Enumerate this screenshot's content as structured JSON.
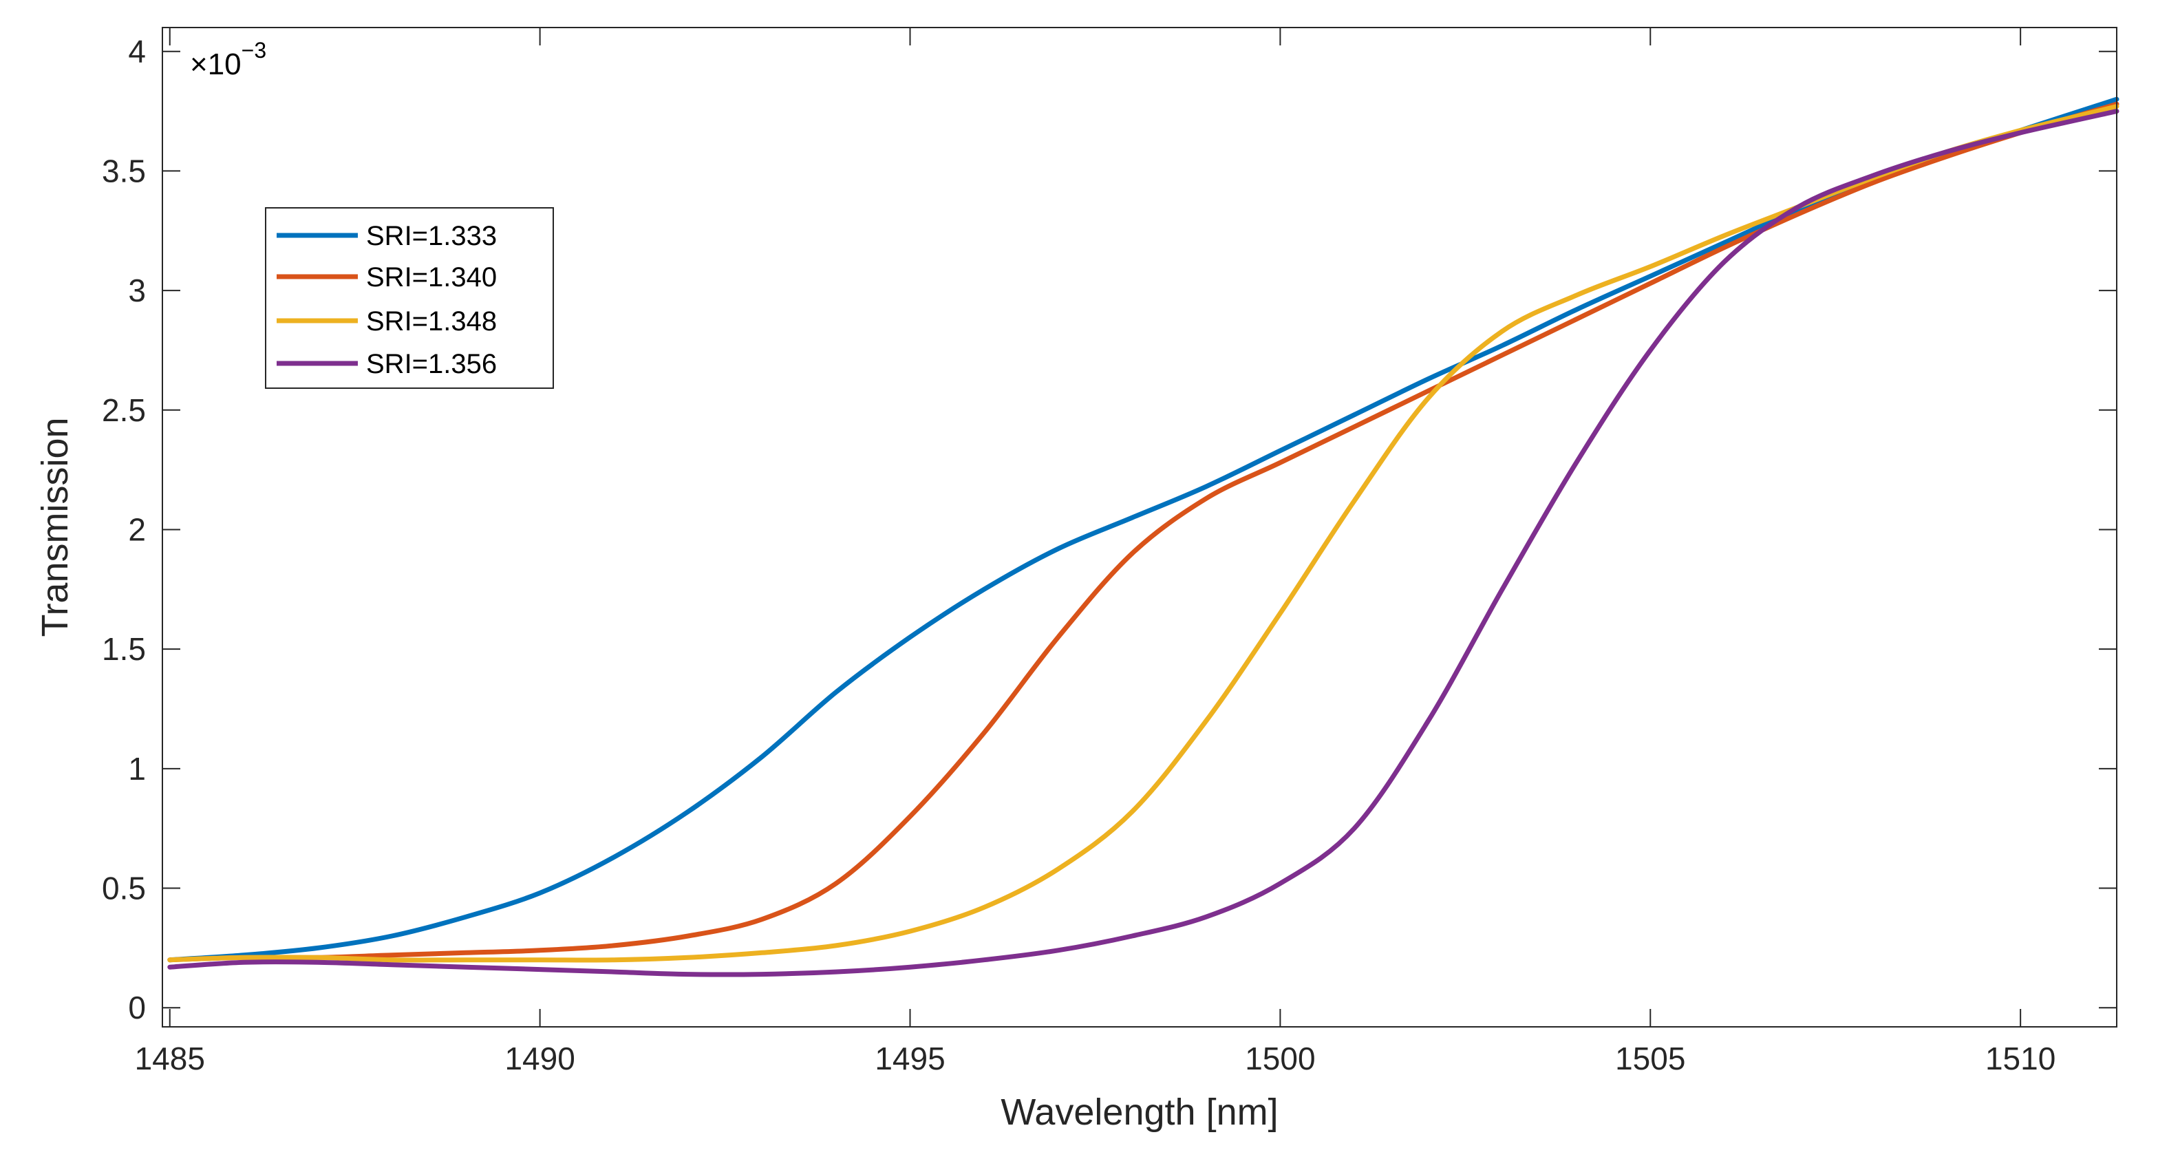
{
  "chart_data": {
    "type": "line",
    "title": "",
    "xlabel": "Wavelength [nm]",
    "ylabel": "Transmission",
    "xlim": [
      1484.9,
      1511.3
    ],
    "ylim": [
      -0.08,
      4.1
    ],
    "xticks": [
      1485,
      1490,
      1495,
      1500,
      1505,
      1510
    ],
    "xtick_labels": [
      "1485",
      "1490",
      "1495",
      "1500",
      "1505",
      "1510"
    ],
    "yticks": [
      0,
      0.5,
      1,
      1.5,
      2,
      2.5,
      3,
      3.5,
      4
    ],
    "ytick_labels": [
      "0",
      "0.5",
      "1",
      "1.5",
      "2",
      "2.5",
      "3",
      "3.5",
      "4"
    ],
    "y_exponent": {
      "base": "×10",
      "power": "−3"
    },
    "grid": false,
    "legend_position": "upper-left",
    "x": [
      1485,
      1486,
      1487,
      1488,
      1489,
      1490,
      1491,
      1492,
      1493,
      1494,
      1495,
      1496,
      1497,
      1498,
      1499,
      1500,
      1501,
      1502,
      1503,
      1504,
      1505,
      1506,
      1507,
      1508,
      1509,
      1510,
      1511.3
    ],
    "series": [
      {
        "name": "SRI=1.333",
        "color": "#0072BD",
        "values": [
          0.2,
          0.22,
          0.25,
          0.3,
          0.38,
          0.48,
          0.63,
          0.82,
          1.05,
          1.32,
          1.55,
          1.75,
          1.92,
          2.05,
          2.18,
          2.33,
          2.48,
          2.63,
          2.77,
          2.92,
          3.06,
          3.2,
          3.34,
          3.46,
          3.57,
          3.67,
          3.8
        ]
      },
      {
        "name": "SRI=1.340",
        "color": "#D95319",
        "values": [
          0.2,
          0.21,
          0.21,
          0.22,
          0.23,
          0.24,
          0.26,
          0.3,
          0.37,
          0.52,
          0.8,
          1.15,
          1.55,
          1.9,
          2.13,
          2.28,
          2.43,
          2.58,
          2.73,
          2.88,
          3.03,
          3.18,
          3.32,
          3.45,
          3.56,
          3.66,
          3.78
        ]
      },
      {
        "name": "SRI=1.348",
        "color": "#EDB120",
        "values": [
          0.2,
          0.21,
          0.21,
          0.2,
          0.2,
          0.2,
          0.2,
          0.21,
          0.23,
          0.26,
          0.32,
          0.42,
          0.58,
          0.82,
          1.2,
          1.65,
          2.12,
          2.55,
          2.83,
          2.98,
          3.1,
          3.23,
          3.35,
          3.47,
          3.58,
          3.67,
          3.77
        ]
      },
      {
        "name": "SRI=1.356",
        "color": "#7E2F8E",
        "values": [
          0.17,
          0.19,
          0.19,
          0.18,
          0.17,
          0.16,
          0.15,
          0.14,
          0.14,
          0.15,
          0.17,
          0.2,
          0.24,
          0.3,
          0.38,
          0.52,
          0.75,
          1.2,
          1.75,
          2.28,
          2.75,
          3.12,
          3.35,
          3.48,
          3.58,
          3.66,
          3.75
        ]
      }
    ]
  }
}
